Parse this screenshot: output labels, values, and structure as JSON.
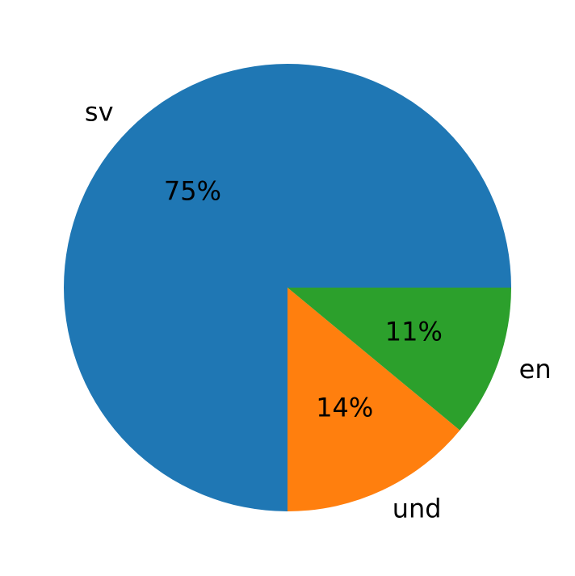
{
  "chart_data": {
    "type": "pie",
    "categories": [
      "sv",
      "und",
      "en"
    ],
    "values": [
      75,
      14,
      11
    ],
    "value_labels": [
      "75%",
      "14%",
      "11%"
    ],
    "colors": [
      "#1f77b4",
      "#ff7f0e",
      "#2ca02c"
    ],
    "start_angle": 0,
    "direction": "counterclockwise"
  }
}
